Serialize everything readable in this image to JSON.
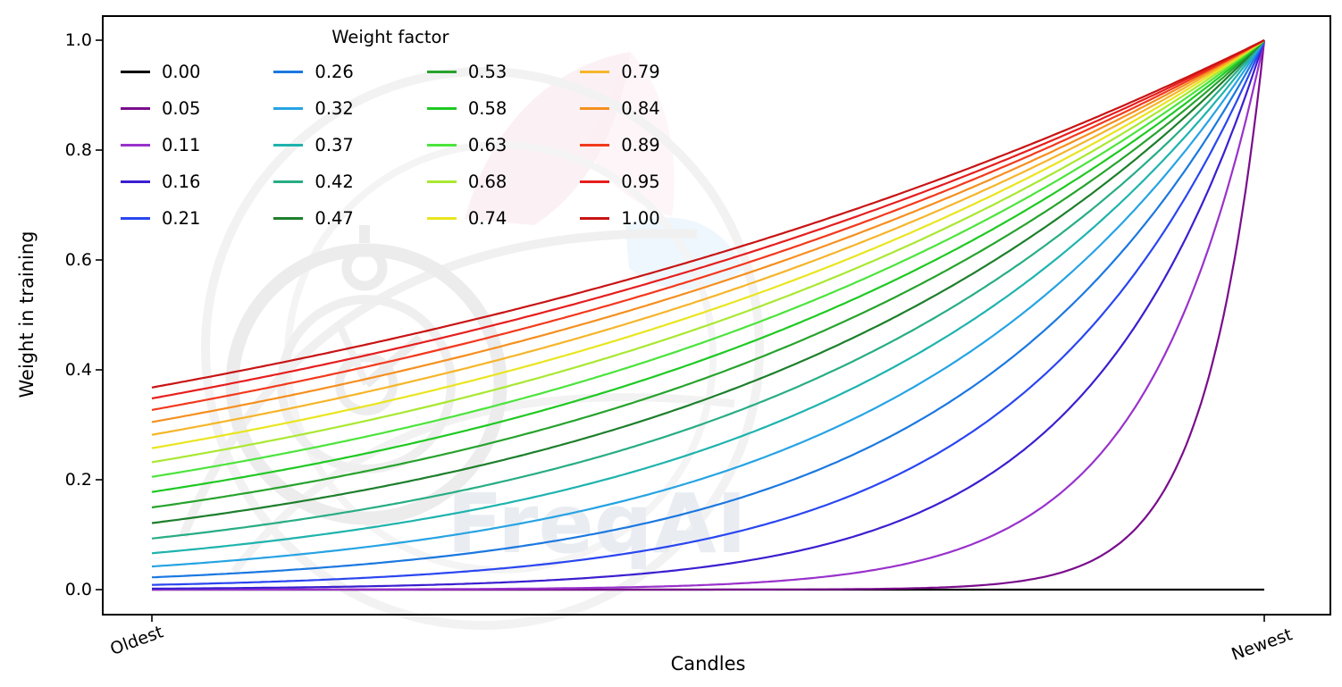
{
  "watermark": {
    "text": "FreqAI"
  },
  "chart_data": {
    "type": "line",
    "title": "",
    "xlabel": "Candles",
    "ylabel": "Weight in training",
    "x_ticks": [
      "Oldest",
      "Newest"
    ],
    "y_ticks": [
      "0.0",
      "0.2",
      "0.4",
      "0.6",
      "0.8",
      "1.0"
    ],
    "ylim": [
      -0.05,
      1.05
    ],
    "grid": false,
    "legend_title": "Weight factor",
    "legend_layout": "upper left, 5 rows x 4 columns, column-major order",
    "formula": "weight(x) = exp(-(1 - x) / weight_factor) for x in [0,1] (Oldest..Newest); weight_factor 0.00 plots as flat 0",
    "series": [
      {
        "label": "0.00",
        "weight_factor": 0.0,
        "color": "#000000"
      },
      {
        "label": "0.05",
        "weight_factor": 0.0526,
        "color": "#7a0d8c"
      },
      {
        "label": "0.11",
        "weight_factor": 0.1053,
        "color": "#9932cc"
      },
      {
        "label": "0.16",
        "weight_factor": 0.1579,
        "color": "#3a1fd0"
      },
      {
        "label": "0.21",
        "weight_factor": 0.2105,
        "color": "#2a46f0"
      },
      {
        "label": "0.26",
        "weight_factor": 0.2632,
        "color": "#1b78e0"
      },
      {
        "label": "0.32",
        "weight_factor": 0.3158,
        "color": "#27a3e3"
      },
      {
        "label": "0.37",
        "weight_factor": 0.3684,
        "color": "#1fb3ae"
      },
      {
        "label": "0.42",
        "weight_factor": 0.4211,
        "color": "#28ad85"
      },
      {
        "label": "0.47",
        "weight_factor": 0.4737,
        "color": "#1d7f2c"
      },
      {
        "label": "0.53",
        "weight_factor": 0.5263,
        "color": "#27a32d"
      },
      {
        "label": "0.58",
        "weight_factor": 0.5789,
        "color": "#1fc922"
      },
      {
        "label": "0.63",
        "weight_factor": 0.6316,
        "color": "#4ce43c"
      },
      {
        "label": "0.68",
        "weight_factor": 0.6842,
        "color": "#a9e832"
      },
      {
        "label": "0.74",
        "weight_factor": 0.7368,
        "color": "#e9e51f"
      },
      {
        "label": "0.79",
        "weight_factor": 0.7895,
        "color": "#f6b52a"
      },
      {
        "label": "0.84",
        "weight_factor": 0.8421,
        "color": "#f58f1f"
      },
      {
        "label": "0.89",
        "weight_factor": 0.8947,
        "color": "#f2391c"
      },
      {
        "label": "0.95",
        "weight_factor": 0.9474,
        "color": "#e61e1e"
      },
      {
        "label": "1.00",
        "weight_factor": 1.0,
        "color": "#c81414"
      }
    ]
  }
}
